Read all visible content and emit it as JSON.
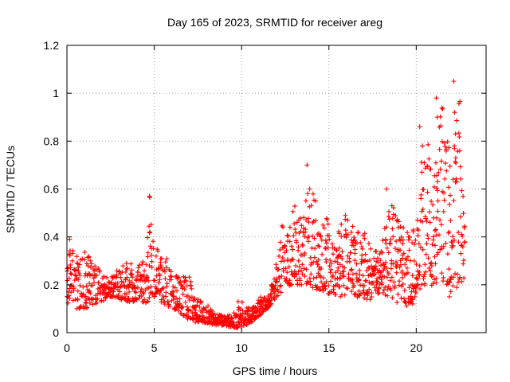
{
  "chart_data": {
    "type": "scatter",
    "title": "Day 165 of 2023, SRMTID for receiver areg",
    "xlabel": "GPS time / hours",
    "ylabel": "SRMTID / TECUs",
    "xlim": [
      0,
      24
    ],
    "ylim": [
      0,
      1.2
    ],
    "xticks": [
      0,
      5,
      10,
      15,
      20
    ],
    "xtick_labels": [
      "0",
      "5",
      "10",
      "15",
      "20"
    ],
    "yticks": [
      0,
      0.2,
      0.4,
      0.6,
      0.8,
      1.0,
      1.2
    ],
    "ytick_labels": [
      "0",
      "0.2",
      "0.4",
      "0.6",
      "0.8",
      "1",
      "1.2"
    ],
    "grid": true,
    "marker": "+",
    "series_color": "#ff0000",
    "envelope": {
      "hours": [
        0,
        0.5,
        1,
        1.5,
        2,
        2.5,
        3,
        3.5,
        4,
        4.5,
        4.75,
        5,
        5.5,
        6,
        6.5,
        7,
        7.5,
        8,
        8.5,
        9,
        9.5,
        10,
        10.5,
        11,
        11.5,
        12,
        12.5,
        13,
        13.5,
        14,
        14.5,
        15,
        15.5,
        16,
        16.5,
        17,
        17.5,
        18,
        18.5,
        19,
        19.5,
        20,
        20.5,
        21,
        21.5,
        22,
        22.5,
        22.8
      ],
      "low": [
        0.12,
        0.1,
        0.1,
        0.11,
        0.13,
        0.15,
        0.14,
        0.13,
        0.13,
        0.12,
        0.14,
        0.15,
        0.12,
        0.1,
        0.08,
        0.05,
        0.04,
        0.04,
        0.03,
        0.03,
        0.02,
        0.02,
        0.04,
        0.07,
        0.1,
        0.15,
        0.18,
        0.2,
        0.2,
        0.18,
        0.18,
        0.16,
        0.15,
        0.15,
        0.15,
        0.14,
        0.13,
        0.16,
        0.15,
        0.12,
        0.11,
        0.15,
        0.18,
        0.2,
        0.2,
        0.17,
        0.2,
        0.22
      ],
      "high": [
        0.38,
        0.33,
        0.35,
        0.3,
        0.26,
        0.23,
        0.28,
        0.3,
        0.3,
        0.3,
        0.57,
        0.36,
        0.34,
        0.27,
        0.25,
        0.24,
        0.14,
        0.12,
        0.08,
        0.07,
        0.08,
        0.13,
        0.1,
        0.15,
        0.15,
        0.3,
        0.53,
        0.55,
        0.48,
        0.7,
        0.48,
        0.48,
        0.42,
        0.52,
        0.42,
        0.44,
        0.36,
        0.36,
        0.6,
        0.47,
        0.42,
        0.46,
        0.88,
        0.65,
        0.98,
        0.7,
        1.05,
        0.39
      ]
    },
    "outliers": [
      {
        "x": 0.15,
        "y": 0.39
      },
      {
        "x": 4.72,
        "y": 0.57
      },
      {
        "x": 4.75,
        "y": 0.42
      },
      {
        "x": 9.8,
        "y": 0.13
      },
      {
        "x": 13.75,
        "y": 0.7
      },
      {
        "x": 13.9,
        "y": 0.6
      },
      {
        "x": 18.3,
        "y": 0.6
      },
      {
        "x": 20.2,
        "y": 0.86
      },
      {
        "x": 20.35,
        "y": 0.78
      },
      {
        "x": 21.15,
        "y": 0.98
      },
      {
        "x": 21.2,
        "y": 0.9
      },
      {
        "x": 22.15,
        "y": 1.05
      },
      {
        "x": 22.2,
        "y": 0.92
      },
      {
        "x": 22.25,
        "y": 0.83
      },
      {
        "x": 21.9,
        "y": 0.15
      },
      {
        "x": 19.8,
        "y": 0.12
      }
    ]
  }
}
